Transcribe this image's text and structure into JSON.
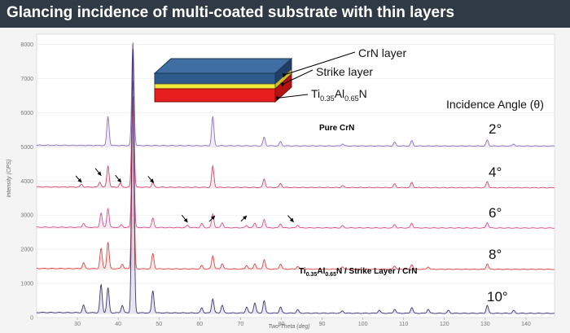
{
  "title": "Glancing incidence of multi-coated substrate with thin layers",
  "chart_data": {
    "type": "line",
    "xlabel": "Two-Theta (deg)",
    "ylabel": "Intensity (CPS)",
    "xlim": [
      20,
      147
    ],
    "ylim": [
      0,
      8300
    ],
    "xticks": [
      30,
      40,
      50,
      60,
      70,
      80,
      90,
      100,
      110,
      120,
      130,
      140
    ],
    "yticks": [
      0,
      1000,
      2000,
      3000,
      4000,
      5000,
      6000,
      7000,
      8000
    ],
    "series": [
      {
        "angle": "2°",
        "offset": 5000,
        "color": "#8e6fbf",
        "peaks": [
          [
            37.5,
            850
          ],
          [
            43.6,
            3050
          ],
          [
            63.2,
            850
          ],
          [
            75.8,
            250
          ],
          [
            79.8,
            120
          ],
          [
            95.0,
            60
          ],
          [
            107.8,
            110
          ],
          [
            112.0,
            150
          ],
          [
            130.5,
            180
          ],
          [
            137.0,
            60
          ]
        ]
      },
      {
        "angle": "4°",
        "offset": 3780,
        "color": "#cf4a6e",
        "peaks": [
          [
            31.0,
            80
          ],
          [
            35.5,
            150
          ],
          [
            37.5,
            620
          ],
          [
            40.5,
            110
          ],
          [
            43.6,
            3150
          ],
          [
            48.5,
            130
          ],
          [
            63.2,
            620
          ],
          [
            75.8,
            250
          ],
          [
            79.8,
            120
          ],
          [
            95.0,
            60
          ],
          [
            107.8,
            110
          ],
          [
            112.0,
            150
          ],
          [
            130.5,
            180
          ]
        ]
      },
      {
        "angle": "6°",
        "offset": 2600,
        "color": "#d9528e",
        "peaks": [
          [
            31.5,
            120
          ],
          [
            35.8,
            420
          ],
          [
            37.5,
            560
          ],
          [
            40.8,
            80
          ],
          [
            43.6,
            3650
          ],
          [
            48.5,
            270
          ],
          [
            57.0,
            70
          ],
          [
            60.5,
            120
          ],
          [
            63.2,
            400
          ],
          [
            65.5,
            150
          ],
          [
            71.5,
            70
          ],
          [
            73.5,
            140
          ],
          [
            75.8,
            250
          ],
          [
            79.8,
            120
          ],
          [
            84.0,
            80
          ],
          [
            95.0,
            60
          ],
          [
            107.8,
            100
          ],
          [
            112.0,
            140
          ],
          [
            130.5,
            160
          ]
        ]
      },
      {
        "angle": "8°",
        "offset": 1390,
        "color": "#e0464a",
        "peaks": [
          [
            31.5,
            170
          ],
          [
            35.8,
            590
          ],
          [
            37.5,
            780
          ],
          [
            41.0,
            140
          ],
          [
            43.6,
            5100
          ],
          [
            48.5,
            450
          ],
          [
            60.5,
            100
          ],
          [
            63.2,
            390
          ],
          [
            65.5,
            160
          ],
          [
            71.5,
            110
          ],
          [
            73.5,
            160
          ],
          [
            75.8,
            280
          ],
          [
            79.8,
            150
          ],
          [
            84.0,
            80
          ],
          [
            95.0,
            60
          ],
          [
            107.8,
            100
          ],
          [
            112.0,
            140
          ],
          [
            116.0,
            70
          ],
          [
            130.5,
            160
          ]
        ]
      },
      {
        "angle": "10°",
        "offset": 100,
        "color": "#3b3575",
        "peaks": [
          [
            31.5,
            220
          ],
          [
            35.8,
            820
          ],
          [
            37.5,
            730
          ],
          [
            41.0,
            220
          ],
          [
            43.6,
            7800
          ],
          [
            48.5,
            650
          ],
          [
            60.5,
            150
          ],
          [
            63.2,
            420
          ],
          [
            65.5,
            230
          ],
          [
            71.5,
            180
          ],
          [
            73.5,
            300
          ],
          [
            75.8,
            360
          ],
          [
            79.8,
            180
          ],
          [
            84.0,
            100
          ],
          [
            95.0,
            70
          ],
          [
            104.0,
            90
          ],
          [
            107.8,
            120
          ],
          [
            112.0,
            170
          ],
          [
            116.0,
            120
          ],
          [
            121.0,
            80
          ],
          [
            130.5,
            230
          ],
          [
            137.0,
            80
          ]
        ]
      }
    ],
    "annotations": {
      "pure_label": "Pure CrN",
      "coated_label": {
        "a": "Ti",
        "a_sub": "0.35",
        "b": "Al",
        "b_sub": "0.65",
        "c": "N / Strike Layer / CrN"
      },
      "angle_header": "Incidence Angle (θ)",
      "arrows": [
        [
          31,
          4150,
          3960
        ],
        [
          35.8,
          4370,
          4160
        ],
        [
          40.7,
          4170,
          3960
        ],
        [
          48.7,
          4140,
          3950
        ],
        [
          57.0,
          3000,
          2790
        ],
        [
          63.7,
          2810,
          2980
        ],
        [
          71.5,
          2820,
          2980
        ],
        [
          83.0,
          2990,
          2800
        ]
      ]
    },
    "schematic": {
      "layers": [
        {
          "label": "CrN layer",
          "color": "#2e5b8e"
        },
        {
          "label": "Strike layer",
          "color": "#f2ea3a"
        },
        {
          "label": "Ti",
          "sub1": "0.35",
          "mid": "Al",
          "sub2": "0.65",
          "end": "N",
          "color": "#e81d1d"
        }
      ]
    }
  }
}
